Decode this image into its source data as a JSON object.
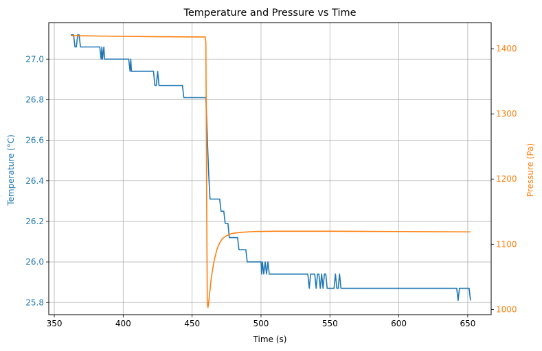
{
  "chart_data": {
    "type": "line",
    "title": "Temperature and Pressure vs Time",
    "xlabel": "Time (s)",
    "xlim": [
      346,
      667
    ],
    "xticks": [
      350,
      400,
      450,
      500,
      550,
      600,
      650
    ],
    "grid": true,
    "y_left": {
      "label": "Temperature (°C)",
      "color": "#1f77b4",
      "lim": [
        25.74,
        27.18
      ],
      "ticks": [
        25.8,
        26.0,
        26.2,
        26.4,
        26.6,
        26.8,
        27.0
      ]
    },
    "y_right": {
      "label": "Pressure (Pa)",
      "color": "#ff7f0e",
      "lim": [
        992,
        1440
      ],
      "ticks": [
        1000,
        1100,
        1200,
        1300,
        1400
      ]
    },
    "series": [
      {
        "name": "Temperature (°C)",
        "axis": "left",
        "color": "#1f77b4",
        "x": [
          362,
          364,
          365,
          366,
          367,
          368,
          369,
          383,
          384,
          384.5,
          385,
          386,
          386.5,
          387,
          404,
          405,
          405.5,
          406,
          422,
          423,
          424,
          425,
          426,
          443,
          444,
          459,
          460,
          461,
          462,
          463,
          465,
          470,
          471,
          473,
          474,
          476,
          477,
          479,
          480,
          483,
          484,
          489,
          490,
          500,
          500.5,
          501,
          502,
          503,
          504,
          505,
          506,
          507,
          534,
          535,
          536,
          538,
          539,
          540,
          541,
          542,
          543,
          544,
          545,
          546,
          547,
          548,
          549,
          553,
          554,
          555,
          556,
          557,
          558,
          642,
          643,
          644,
          651,
          652
        ],
        "y": [
          27.12,
          27.12,
          27.06,
          27.06,
          27.12,
          27.12,
          27.06,
          27.06,
          27.0,
          27.06,
          27.0,
          27.06,
          27.0,
          27.0,
          27.0,
          26.94,
          27.0,
          26.94,
          26.94,
          26.87,
          26.87,
          26.94,
          26.87,
          26.87,
          26.81,
          26.81,
          26.81,
          26.62,
          26.44,
          26.31,
          26.31,
          26.31,
          26.25,
          26.25,
          26.19,
          26.19,
          26.12,
          26.12,
          26.12,
          26.12,
          26.06,
          26.06,
          26.0,
          26.0,
          25.94,
          26.0,
          25.94,
          26.0,
          25.94,
          26.0,
          25.94,
          25.94,
          25.94,
          25.87,
          25.94,
          25.94,
          25.94,
          25.87,
          25.94,
          25.94,
          25.87,
          25.94,
          25.87,
          25.94,
          25.94,
          25.87,
          25.87,
          25.87,
          25.94,
          25.87,
          25.87,
          25.94,
          25.87,
          25.87,
          25.81,
          25.87,
          25.87,
          25.81
        ]
      },
      {
        "name": "Pressure (Pa)",
        "axis": "right",
        "color": "#ff7f0e",
        "x": [
          362,
          380,
          420,
          459.5,
          460,
          460.5,
          461,
          461.5,
          462,
          463,
          464,
          466,
          468,
          470,
          472,
          475,
          478,
          482,
          487,
          495,
          510,
          550,
          600,
          652
        ],
        "y": [
          1420,
          1419.5,
          1418.5,
          1418,
          1410,
          1200,
          1010,
          1003,
          1010,
          1030,
          1050,
          1075,
          1092,
          1102,
          1109,
          1113,
          1116,
          1117.5,
          1118.5,
          1119.5,
          1120,
          1120,
          1119.5,
          1119
        ]
      }
    ]
  }
}
